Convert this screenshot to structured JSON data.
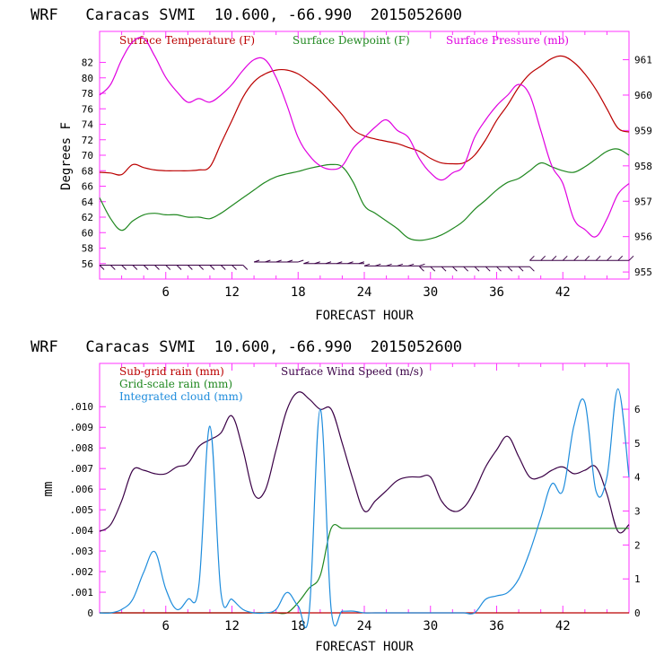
{
  "chart_data": [
    {
      "type": "line",
      "title": "WRF   Caracas SVMI  10.600, -66.990  2015052600",
      "xlabel": "FORECAST HOUR",
      "ylabel": "Degrees F",
      "xlim": [
        0,
        48
      ],
      "ylim": [
        54,
        86
      ],
      "y2lim": [
        954.8,
        961.8
      ],
      "x_ticks": [
        "6",
        "12",
        "18",
        "24",
        "30",
        "36",
        "42"
      ],
      "y_ticks": [
        "56",
        "58",
        "60",
        "62",
        "64",
        "66",
        "68",
        "70",
        "72",
        "74",
        "76",
        "78",
        "80",
        "82"
      ],
      "y2_ticks": [
        "955",
        "956",
        "957",
        "958",
        "959",
        "960",
        "961"
      ],
      "legend": [
        "Surface Temperature (F)",
        "Surface Dewpoint (F)",
        "Surface Pressure (mb)"
      ],
      "colors": {
        "temperature": "#bb0000",
        "dewpoint": "#208820",
        "pressure": "#e000e0",
        "barbs": "#3a0046"
      },
      "x": [
        0,
        1,
        2,
        3,
        4,
        5,
        6,
        7,
        8,
        9,
        10,
        11,
        12,
        13,
        14,
        15,
        16,
        17,
        18,
        19,
        20,
        21,
        22,
        23,
        24,
        25,
        26,
        27,
        28,
        29,
        30,
        31,
        32,
        33,
        34,
        35,
        36,
        37,
        38,
        39,
        40,
        41,
        42,
        43,
        44,
        45,
        46,
        47,
        48
      ],
      "series": [
        {
          "name": "Surface Temperature (F)",
          "axis": "left",
          "values": [
            67.8,
            67.7,
            67.5,
            68.8,
            68.4,
            68.1,
            68.0,
            68.0,
            68.0,
            68.1,
            68.5,
            71.5,
            74.5,
            77.5,
            79.5,
            80.5,
            81.0,
            81.0,
            80.5,
            79.5,
            78.3,
            76.8,
            75.2,
            73.3,
            72.5,
            72.1,
            71.8,
            71.5,
            71.0,
            70.5,
            69.6,
            69.0,
            68.9,
            69.0,
            70.0,
            72.0,
            74.5,
            76.5,
            78.8,
            80.5,
            81.5,
            82.5,
            82.8,
            82.0,
            80.5,
            78.5,
            76.0,
            73.5,
            73.0
          ]
        },
        {
          "name": "Surface Dewpoint (F)",
          "axis": "left",
          "values": [
            64.5,
            61.8,
            60.3,
            61.5,
            62.3,
            62.5,
            62.3,
            62.3,
            62.0,
            62.0,
            61.8,
            62.5,
            63.5,
            64.5,
            65.5,
            66.5,
            67.2,
            67.6,
            67.9,
            68.3,
            68.6,
            68.8,
            68.5,
            66.5,
            63.5,
            62.5,
            61.5,
            60.5,
            59.3,
            59.0,
            59.2,
            59.7,
            60.5,
            61.5,
            63.0,
            64.2,
            65.5,
            66.5,
            67.0,
            68.0,
            69.0,
            68.5,
            68.0,
            67.8,
            68.5,
            69.5,
            70.5,
            70.8,
            70.0
          ]
        },
        {
          "name": "Surface Pressure (mb)",
          "axis": "right",
          "values": [
            960.0,
            960.3,
            961.0,
            961.5,
            961.6,
            961.1,
            960.5,
            960.1,
            959.8,
            959.9,
            959.8,
            960.0,
            960.3,
            960.7,
            961.0,
            961.0,
            960.5,
            959.7,
            958.8,
            958.3,
            958.0,
            957.9,
            958.0,
            958.5,
            958.8,
            959.1,
            959.3,
            959.0,
            958.8,
            958.2,
            957.8,
            957.6,
            957.8,
            958.0,
            958.8,
            959.3,
            959.7,
            960.0,
            960.3,
            960.0,
            959.0,
            958.0,
            957.5,
            956.5,
            956.2,
            956.0,
            956.5,
            957.2,
            957.5
          ]
        }
      ],
      "wind_barbs": {
        "segments": [
          {
            "from": 0,
            "to": 13,
            "row": 55.8,
            "direction": "down-right"
          },
          {
            "from": 14,
            "to": 18,
            "row": 56.2,
            "direction": "right"
          },
          {
            "from": 18.5,
            "to": 24,
            "row": 56.0,
            "direction": "right"
          },
          {
            "from": 24,
            "to": 29,
            "row": 55.7,
            "direction": "right"
          },
          {
            "from": 29,
            "to": 39,
            "row": 55.6,
            "direction": "down-right"
          },
          {
            "from": 39,
            "to": 48,
            "row": 56.4,
            "direction": "up-right"
          }
        ]
      }
    },
    {
      "type": "line",
      "title": "WRF   Caracas SVMI  10.600, -66.990  2015052600",
      "xlabel": "FORECAST HOUR",
      "ylabel": "mm",
      "xlim": [
        0,
        48
      ],
      "ylim": [
        0,
        0.0121
      ],
      "y2lim": [
        0,
        7.35
      ],
      "x_ticks": [
        "6",
        "12",
        "18",
        "24",
        "30",
        "36",
        "42"
      ],
      "y_ticks": [
        "0",
        ".001",
        ".002",
        ".003",
        ".004",
        ".005",
        ".006",
        ".007",
        ".008",
        ".009",
        ".010"
      ],
      "y2_ticks": [
        "0",
        "1",
        "2",
        "3",
        "4",
        "5",
        "6"
      ],
      "legend": [
        "Sub-grid rain (mm)",
        "Grid-scale rain (mm)",
        "Integrated cloud (mm)",
        "Surface Wind Speed (m/s)"
      ],
      "colors": {
        "subgrid": "#bb0000",
        "gridscale": "#208820",
        "cloud": "#1e8cdc",
        "wind": "#3a0046"
      },
      "x": [
        0,
        1,
        2,
        3,
        4,
        5,
        6,
        7,
        8,
        9,
        10,
        11,
        12,
        13,
        14,
        15,
        16,
        17,
        18,
        19,
        20,
        21,
        22,
        23,
        24,
        25,
        26,
        27,
        28,
        29,
        30,
        31,
        32,
        33,
        34,
        35,
        36,
        37,
        38,
        39,
        40,
        41,
        42,
        43,
        44,
        45,
        46,
        47,
        48
      ],
      "series": [
        {
          "name": "Surface Wind Speed (m/s)",
          "axis": "right",
          "values": [
            2.4,
            2.6,
            3.3,
            4.2,
            4.2,
            4.1,
            4.1,
            4.3,
            4.4,
            4.9,
            5.1,
            5.3,
            5.8,
            4.8,
            3.5,
            3.6,
            4.8,
            6.0,
            6.5,
            6.3,
            6.0,
            6.0,
            5.0,
            3.9,
            3.0,
            3.3,
            3.6,
            3.9,
            4.0,
            4.0,
            4.0,
            3.3,
            3.0,
            3.1,
            3.6,
            4.3,
            4.8,
            5.2,
            4.6,
            4.0,
            4.0,
            4.2,
            4.3,
            4.1,
            4.2,
            4.3,
            3.5,
            2.4,
            2.6
          ]
        },
        {
          "name": "Grid-scale rain (mm)",
          "axis": "left",
          "values": [
            0,
            0,
            0,
            0,
            0,
            0,
            0,
            0,
            0,
            0,
            0,
            0,
            0,
            0,
            0,
            0,
            0,
            0,
            0.0005,
            0.0012,
            0.0018,
            0.0041,
            0.0041,
            0.0041,
            0.0041,
            0.0041,
            0.0041,
            0.0041,
            0.0041,
            0.0041,
            0.0041,
            0.0041,
            0.0041,
            0.0041,
            0.0041,
            0.0041,
            0.0041,
            0.0041,
            0.0041,
            0.0041,
            0.0041,
            0.0041,
            0.0041,
            0.0041,
            0.0041,
            0.0041,
            0.0041,
            0.0041,
            0.0041
          ]
        },
        {
          "name": "Sub-grid rain (mm)",
          "axis": "left",
          "values": [
            0,
            0,
            0,
            0,
            0,
            0,
            0,
            0,
            0,
            0,
            0,
            0,
            0,
            0,
            0,
            0,
            0,
            0,
            0,
            0,
            0,
            0,
            0,
            0,
            0,
            0,
            0,
            0,
            0,
            0,
            0,
            0,
            0,
            0,
            0,
            0,
            0,
            0,
            0,
            0,
            0,
            0,
            0,
            0,
            0,
            0,
            0,
            0,
            0
          ]
        },
        {
          "name": "Integrated cloud (mm)",
          "axis": "right",
          "values": [
            0,
            0,
            0.1,
            0.4,
            1.2,
            1.8,
            0.7,
            0.1,
            0.4,
            0.8,
            5.5,
            0.6,
            0.4,
            0.1,
            0,
            0,
            0.1,
            0.6,
            0.2,
            0,
            6.0,
            0.1,
            0.05,
            0.05,
            0,
            0,
            0,
            0,
            0,
            0,
            0,
            0,
            0,
            0,
            0,
            0.4,
            0.5,
            0.6,
            1.0,
            1.8,
            2.8,
            3.8,
            3.6,
            5.5,
            6.2,
            3.6,
            4.0,
            6.6,
            4.0
          ]
        }
      ]
    }
  ]
}
